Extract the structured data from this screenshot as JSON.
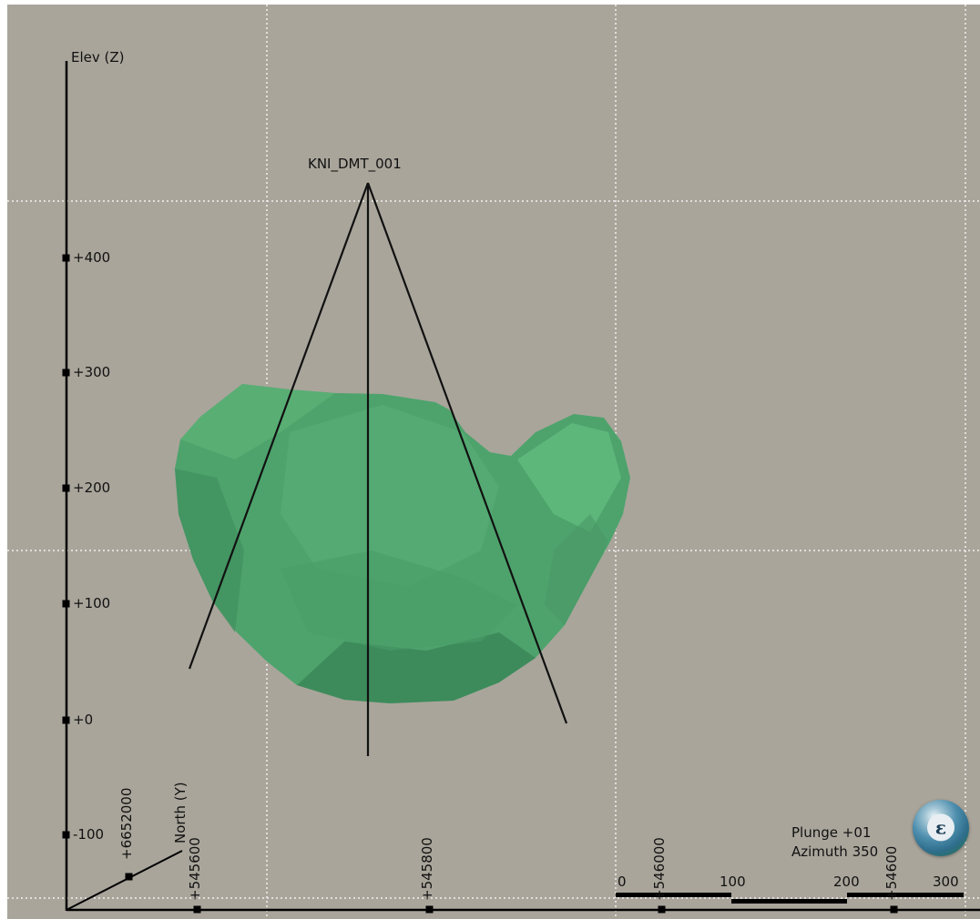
{
  "axes": {
    "elevation_label": "Elev (Z)",
    "north_label": "North (Y)",
    "elevation_ticks": [
      "+400",
      "+300",
      "+200",
      "+100",
      "+0",
      "-100"
    ],
    "easting_ticks": [
      "+545600",
      "+545800",
      "+546000",
      "+54600"
    ],
    "northing_ticks": [
      "+6652000"
    ]
  },
  "drillhole": {
    "label": "KNI_DMT_001"
  },
  "scale_bar": {
    "labels": [
      "0",
      "100",
      "200",
      "300"
    ]
  },
  "view": {
    "plunge_text": "Plunge +01",
    "azimuth_text": "Azimuth 350"
  },
  "navigator": {
    "glyph": "ε",
    "icon": "navigation-sphere-icon"
  },
  "colors": {
    "background": "#a9a59b",
    "solid_fill": "#4ea36c",
    "axis": "#000000",
    "grid": "#f2f2f2"
  }
}
